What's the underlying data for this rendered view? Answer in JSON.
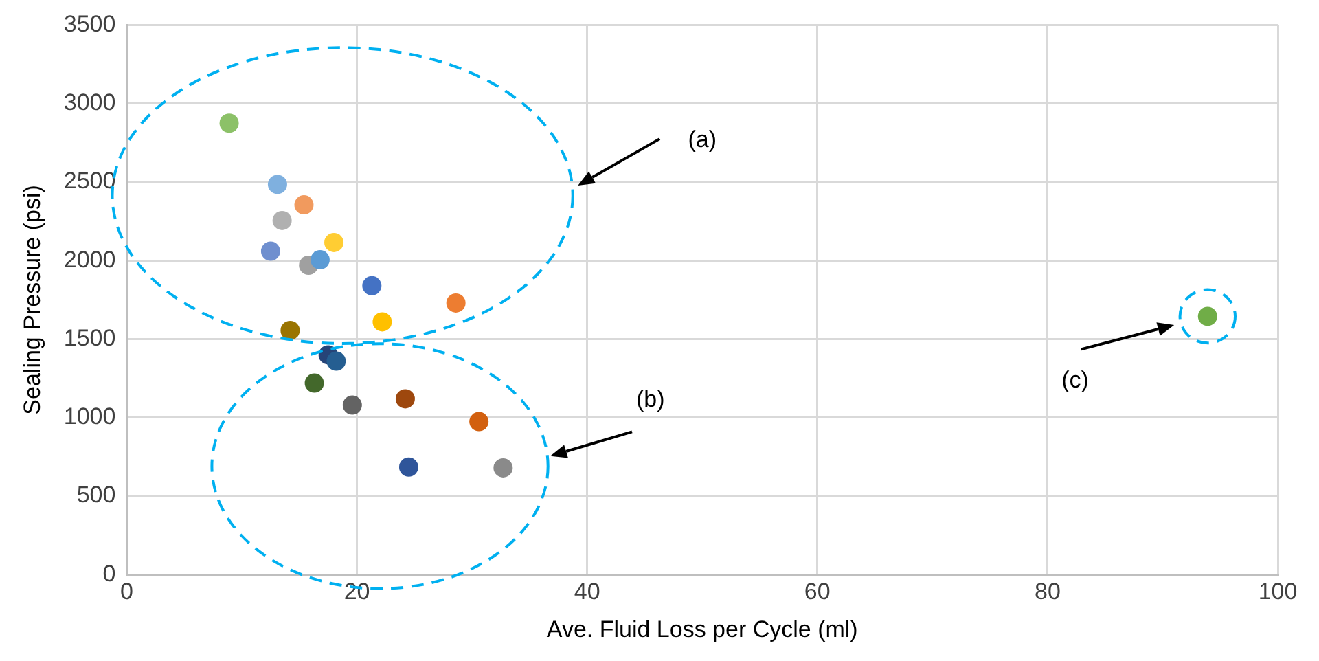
{
  "chart_data": {
    "type": "scatter",
    "xlabel": "Ave. Fluid Loss per Cycle (ml)",
    "ylabel": "Sealing Pressure (psi)",
    "xlim": [
      0,
      100
    ],
    "xticks": [
      0,
      20,
      40,
      60,
      80,
      100
    ],
    "ylim": [
      0,
      3500
    ],
    "yticks": [
      0,
      500,
      1000,
      1500,
      2000,
      2500,
      3000,
      3500
    ],
    "grid": true,
    "legend": false,
    "marker": "circle",
    "series": [
      {
        "x": [
          8.9,
          13.1,
          15.4,
          13.5,
          18.0,
          12.5,
          15.8,
          16.8,
          21.3,
          28.6,
          22.2,
          14.2,
          17.5,
          18.2,
          16.3,
          19.6,
          24.2,
          30.6,
          24.5,
          32.7,
          93.9
        ],
        "values": [
          2875,
          2485,
          2355,
          2255,
          2115,
          2060,
          1970,
          2005,
          1840,
          1730,
          1610,
          1555,
          1400,
          1360,
          1220,
          1080,
          1120,
          975,
          685,
          680,
          1645
        ],
        "colors": [
          "#8cc168",
          "#7fb0df",
          "#f19a5e",
          "#b0b0b0",
          "#ffcd33",
          "#6f8fcf",
          "#a0a0a0",
          "#5b9bd5",
          "#4472c4",
          "#ed7d31",
          "#ffc000",
          "#9a7400",
          "#264478",
          "#255e91",
          "#43682b",
          "#636363",
          "#9e480e",
          "#d2600f",
          "#2f559a",
          "#8a8a8a",
          "#70ad47"
        ]
      }
    ],
    "annotations": [
      "(a)",
      "(b)",
      "(c)"
    ]
  }
}
